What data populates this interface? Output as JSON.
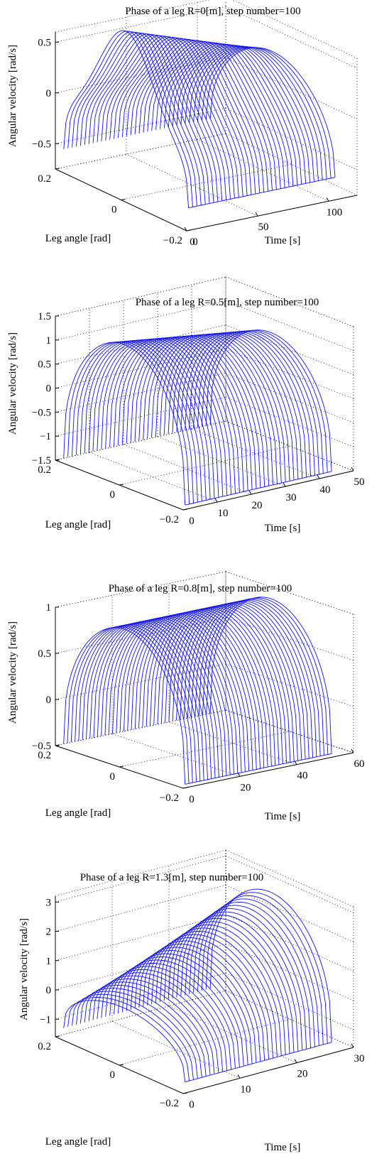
{
  "chart_data": [
    {
      "type": "surface3d",
      "title": "Phase of a leg R=0[m], step number=100",
      "xlabel": "Leg angle [rad]",
      "ylabel": "Time [s]",
      "zlabel": "Angular velocity [rad/s]",
      "x_ticks": [
        "0.2",
        "0",
        "−0.2"
      ],
      "y_ticks": [
        "0",
        "50",
        "100"
      ],
      "z_ticks": [
        "0.5",
        "0",
        "−0.5"
      ],
      "xlim": [
        -0.2,
        0.2
      ],
      "ylim": [
        0,
        120
      ],
      "zlim": [
        -0.75,
        0.6
      ],
      "grid": true,
      "series_color": "#1010ff",
      "shape": "saddle",
      "steps": 100,
      "curve_count": 36,
      "amp_start": 0.55,
      "amp_end": 0.4,
      "base_z": -0.55,
      "x_span": [
        -0.19,
        0.19
      ]
    },
    {
      "type": "surface3d",
      "title": "Phase of a leg R=0.5[m], step number=100",
      "xlabel": "Leg angle [rad]",
      "ylabel": "Time [s]",
      "zlabel": "Angular velocity [rad/s]",
      "x_ticks": [
        "0.2",
        "0",
        "−0.2"
      ],
      "y_ticks": [
        "10",
        "20",
        "30",
        "40",
        "50"
      ],
      "y_tick_values": [
        10,
        20,
        30,
        40,
        50
      ],
      "y_zero_label": "0",
      "z_ticks": [
        "1.5",
        "1",
        "0.5",
        "0",
        "−0.5",
        "−1",
        "−1.5"
      ],
      "xlim": [
        -0.2,
        0.2
      ],
      "ylim": [
        0,
        50
      ],
      "zlim": [
        -1.5,
        1.5
      ],
      "grid": true,
      "series_color": "#1010ff",
      "shape": "arch-decreasing",
      "steps": 100,
      "curve_count": 36,
      "amp_start": 1.4,
      "amp_end": 0.95,
      "base_z": -1.45,
      "x_span": [
        -0.19,
        0.19
      ]
    },
    {
      "type": "surface3d",
      "title": "Phase of a leg R=0.8[m], step number=100",
      "xlabel": "Leg angle [rad]",
      "ylabel": "Time [s]",
      "zlabel": "Angular velocity [rad/s]",
      "x_ticks": [
        "0.2",
        "0",
        "−0.2"
      ],
      "y_ticks": [
        "20",
        "40",
        "60"
      ],
      "y_tick_values": [
        20,
        40,
        60
      ],
      "y_zero_label": "0",
      "z_ticks": [
        "1",
        "0.5",
        "0",
        "−0.5"
      ],
      "xlim": [
        -0.2,
        0.2
      ],
      "ylim": [
        0,
        60
      ],
      "zlim": [
        -0.5,
        1
      ],
      "grid": true,
      "series_color": "#1010ff",
      "shape": "arch-constant",
      "steps": 100,
      "curve_count": 40,
      "amp_start": 0.98,
      "amp_end": 0.98,
      "base_z": -0.48,
      "x_span": [
        -0.19,
        0.19
      ]
    },
    {
      "type": "surface3d",
      "title": "Phase of a leg R=1.3[m], step number=100",
      "xlabel": "Leg angle [rad]",
      "ylabel": "Time [s]",
      "zlabel": "Angular velocity [rad/s]",
      "x_ticks": [
        "0.2",
        "0",
        "−0.2"
      ],
      "y_ticks": [
        "10",
        "20",
        "30"
      ],
      "y_tick_values": [
        10,
        20,
        30
      ],
      "y_zero_label": "0",
      "z_ticks": [
        "3",
        "2",
        "1",
        "0",
        "−1"
      ],
      "xlim": [
        -0.2,
        0.2
      ],
      "ylim": [
        0,
        30
      ],
      "zlim": [
        -1.6,
        3.2
      ],
      "grid": true,
      "series_color": "#1010ff",
      "shape": "arch-increasing",
      "steps": 100,
      "curve_count": 36,
      "amp_start": 0.3,
      "amp_end": 2.9,
      "base_z": -1.3,
      "x_span": [
        -0.19,
        0.19
      ]
    }
  ]
}
